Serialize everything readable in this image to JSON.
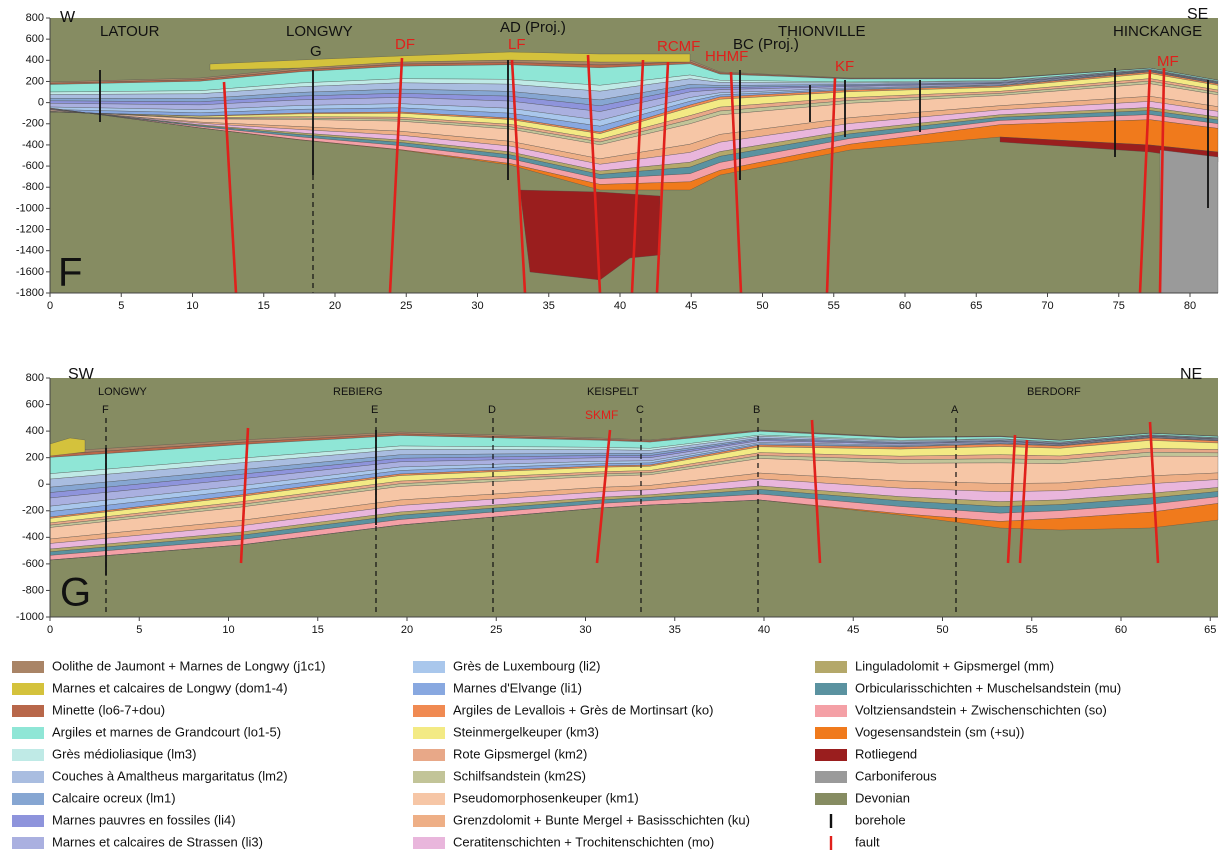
{
  "panels": [
    {
      "letter": "F",
      "labels": [
        "W",
        "LATOUR",
        "LONGWY",
        "G",
        "AD (Proj.)",
        "BC (Proj.)",
        "THIONVILLE",
        "SE",
        "HINCKANGE"
      ],
      "faults": [
        "DF",
        "LF",
        "RCMF",
        "HHMF",
        "KF",
        "MF"
      ],
      "xticks": [
        0,
        5,
        10,
        15,
        20,
        25,
        30,
        35,
        40,
        45,
        50,
        55,
        60,
        65,
        70,
        75,
        80
      ],
      "yticks": [
        800,
        600,
        400,
        200,
        0,
        -200,
        -400,
        -600,
        -800,
        -1000,
        -1200,
        -1400,
        -1600,
        -1800
      ]
    },
    {
      "letter": "G",
      "labels": [
        "SW",
        "LONGWY",
        "F",
        "REBIERG",
        "E",
        "D",
        "KEISPELT",
        "C",
        "B",
        "A",
        "BERDORF",
        "NE"
      ],
      "faults": [
        "SKMF"
      ],
      "xticks": [
        0,
        5,
        10,
        15,
        20,
        25,
        30,
        35,
        40,
        45,
        50,
        55,
        60,
        65
      ],
      "yticks": [
        800,
        600,
        400,
        200,
        0,
        -200,
        -400,
        -600,
        -800,
        -1000
      ]
    }
  ],
  "legend": [
    {
      "label": "Oolithe de Jaumont + Marnes de Longwy (j1c1)",
      "color": "#a98466"
    },
    {
      "label": "Marnes et calcaires de Longwy (dom1-4)",
      "color": "#d4c23c"
    },
    {
      "label": "Minette (lo6-7+dou)",
      "color": "#b8674a"
    },
    {
      "label": "Argiles et marnes de Grandcourt (lo1-5)",
      "color": "#8fe6d6"
    },
    {
      "label": "Grès médioliasique (lm3)",
      "color": "#bfeae6"
    },
    {
      "label": "Couches à Amaltheus margaritatus (lm2)",
      "color": "#a9bde0"
    },
    {
      "label": "Calcaire ocreux (lm1)",
      "color": "#86a6d2"
    },
    {
      "label": "Marnes pauvres en fossiles (li4)",
      "color": "#8e94dc"
    },
    {
      "label": "Marnes et calcaires de Strassen (li3)",
      "color": "#aab0e0"
    },
    {
      "label": "Grès de Luxembourg (li2)",
      "color": "#a9c7ec"
    },
    {
      "label": "Marnes d'Elvange (li1)",
      "color": "#88a8e0"
    },
    {
      "label": "Argiles de Levallois + Grès de Mortinsart (ko)",
      "color": "#f08a52"
    },
    {
      "label": "Steinmergelkeuper (km3)",
      "color": "#f3ea84"
    },
    {
      "label": "Rote Gipsmergel (km2)",
      "color": "#e8a888"
    },
    {
      "label": "Schilfsandstein (km2S)",
      "color": "#c2c498"
    },
    {
      "label": "Pseudomorphosenkeuper (km1)",
      "color": "#f6c6a6"
    },
    {
      "label": "Grenzdolomit + Bunte Mergel + Basisschichten (ku)",
      "color": "#eeaf86"
    },
    {
      "label": "Ceratitenschichten + Trochitenschichten (mo)",
      "color": "#e9b6dc"
    },
    {
      "label": "Linguladolomit + Gipsmergel (mm)",
      "color": "#b4a86a"
    },
    {
      "label": "Orbicularisschichten + Muschelsandstein (mu)",
      "color": "#5a92a0"
    },
    {
      "label": "Voltziensandstein + Zwischenschichten (so)",
      "color": "#f4a0a6"
    },
    {
      "label": "Vogesensandstein (sm (+su))",
      "color": "#f07a1c"
    },
    {
      "label": "Rotliegend",
      "color": "#9a1e1e"
    },
    {
      "label": "Carboniferous",
      "color": "#9a9a9a"
    },
    {
      "label": "Devonian",
      "color": "#868c62"
    },
    {
      "label": "borehole"
    },
    {
      "label": "fault"
    }
  ]
}
